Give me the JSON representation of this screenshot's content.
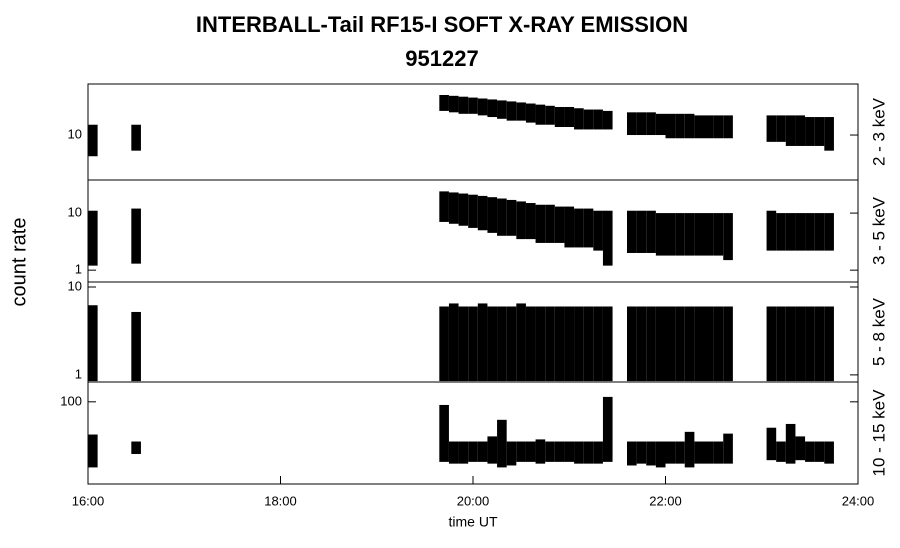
{
  "chart_data": {
    "type": "range",
    "title": "INTERBALL-Tail RF15-I SOFT X-RAY EMISSION",
    "subtitle": "951227",
    "x_label": "time UT",
    "y_label": "count rate",
    "color": "#000000",
    "log_y": true,
    "xlim": [
      16,
      24
    ],
    "xticks": [
      {
        "value": 16,
        "label": "16:00"
      },
      {
        "value": 18,
        "label": "18:00"
      },
      {
        "value": 20,
        "label": "20:00"
      },
      {
        "value": 22,
        "label": "22:00"
      },
      {
        "value": 24,
        "label": "24:00"
      }
    ],
    "panels": [
      {
        "name": "2 - 3 keV",
        "ylim": [
          2.3,
          53
        ],
        "yticks": [
          10
        ],
        "x": [
          16.05,
          16.5,
          19.7,
          19.8,
          19.9,
          20.0,
          20.1,
          20.2,
          20.3,
          20.4,
          20.5,
          20.6,
          20.7,
          20.8,
          20.9,
          21.0,
          21.1,
          21.2,
          21.3,
          21.4,
          21.65,
          21.75,
          21.85,
          21.95,
          22.05,
          22.15,
          22.25,
          22.35,
          22.45,
          22.55,
          22.65,
          23.1,
          23.2,
          23.3,
          23.4,
          23.5,
          23.6,
          23.7
        ],
        "high": [
          14,
          14,
          37,
          36,
          35,
          34,
          33,
          32,
          31,
          30,
          29,
          28,
          27,
          26,
          25,
          25,
          24,
          23,
          23,
          22,
          21,
          21,
          21,
          20,
          20,
          20,
          20,
          19,
          19,
          19,
          19,
          19,
          19,
          19,
          19,
          18,
          18,
          18
        ],
        "low": [
          5,
          6,
          22,
          21,
          20,
          20,
          19,
          18,
          17,
          16,
          16,
          15,
          14,
          14,
          13,
          13,
          12,
          12,
          12,
          12,
          10,
          10,
          10,
          10,
          9,
          9,
          9,
          9,
          9,
          9,
          9,
          8,
          8,
          7,
          7,
          7,
          7,
          6
        ]
      },
      {
        "name": "3 - 5 keV",
        "ylim": [
          0.62,
          38
        ],
        "yticks": [
          1,
          10
        ],
        "x": [
          16.05,
          16.5,
          19.7,
          19.8,
          19.9,
          20.0,
          20.1,
          20.2,
          20.3,
          20.4,
          20.5,
          20.6,
          20.7,
          20.8,
          20.9,
          21.0,
          21.1,
          21.2,
          21.3,
          21.4,
          21.65,
          21.75,
          21.85,
          21.95,
          22.05,
          22.15,
          22.25,
          22.35,
          22.45,
          22.55,
          22.65,
          23.1,
          23.2,
          23.3,
          23.4,
          23.5,
          23.6,
          23.7
        ],
        "high": [
          11,
          12,
          24,
          23,
          22,
          21,
          20,
          19,
          18,
          17,
          16,
          15,
          14,
          14,
          13,
          13,
          12,
          12,
          11,
          11,
          11,
          11,
          11,
          10,
          10,
          10,
          10,
          10,
          10,
          10,
          10,
          11,
          10,
          10,
          10,
          10,
          10,
          10
        ],
        "low": [
          1.2,
          1.3,
          7,
          6.5,
          6,
          5.5,
          5,
          4.5,
          4,
          4,
          3.5,
          3.5,
          3,
          3,
          3,
          2.5,
          2.5,
          2.5,
          2.2,
          1.2,
          2,
          2,
          2,
          1.8,
          1.8,
          1.8,
          1.8,
          1.8,
          1.8,
          1.8,
          1.5,
          2.2,
          2.2,
          2.2,
          2.2,
          2.2,
          2.2,
          2.2
        ]
      },
      {
        "name": "5 - 8 keV",
        "ylim": [
          0.83,
          11.4
        ],
        "yticks": [
          1,
          10
        ],
        "x": [
          16.05,
          16.5,
          19.7,
          19.8,
          19.9,
          20.0,
          20.1,
          20.2,
          20.3,
          20.4,
          20.5,
          20.6,
          20.7,
          20.8,
          20.9,
          21.0,
          21.1,
          21.2,
          21.3,
          21.4,
          21.65,
          21.75,
          21.85,
          21.95,
          22.05,
          22.15,
          22.25,
          22.35,
          22.45,
          22.55,
          22.65,
          23.1,
          23.2,
          23.3,
          23.4,
          23.5,
          23.6,
          23.7
        ],
        "high": [
          6.2,
          5.2,
          6,
          6.5,
          6,
          6,
          6.5,
          6,
          6,
          6,
          6.5,
          6,
          6,
          6,
          6,
          6,
          6,
          6,
          6,
          6,
          6,
          6,
          6,
          6,
          6,
          6,
          6,
          6,
          6,
          6,
          6,
          6,
          6,
          6,
          6,
          6,
          6,
          6
        ],
        "low": [
          0.85,
          0.85,
          0.85,
          0.85,
          0.85,
          0.85,
          0.85,
          0.85,
          0.85,
          0.85,
          0.85,
          0.85,
          0.85,
          0.85,
          0.85,
          0.85,
          0.85,
          0.85,
          0.85,
          0.85,
          0.85,
          0.85,
          0.85,
          0.85,
          0.85,
          0.85,
          0.85,
          0.85,
          0.85,
          0.85,
          0.85,
          0.85,
          0.85,
          0.85,
          0.85,
          0.85,
          0.85,
          0.85
        ]
      },
      {
        "name": "10 - 15 keV",
        "ylim": [
          15,
          158
        ],
        "yticks": [
          100
        ],
        "x": [
          16.05,
          16.5,
          19.7,
          19.8,
          19.9,
          20.0,
          20.1,
          20.2,
          20.3,
          20.4,
          20.5,
          20.6,
          20.7,
          20.8,
          20.9,
          21.0,
          21.1,
          21.2,
          21.3,
          21.4,
          21.65,
          21.75,
          21.85,
          21.95,
          22.05,
          22.15,
          22.25,
          22.35,
          22.45,
          22.55,
          22.65,
          23.1,
          23.2,
          23.3,
          23.4,
          23.5,
          23.6,
          23.7
        ],
        "high": [
          47,
          40,
          93,
          40,
          40,
          40,
          40,
          45,
          66,
          40,
          40,
          40,
          42,
          40,
          40,
          40,
          40,
          40,
          40,
          112,
          40,
          40,
          40,
          40,
          40,
          40,
          50,
          40,
          40,
          40,
          48,
          55,
          40,
          60,
          45,
          40,
          40,
          40
        ],
        "low": [
          22,
          30,
          25,
          24,
          24,
          25,
          25,
          24,
          22,
          23,
          25,
          25,
          24,
          25,
          25,
          25,
          24,
          24,
          24,
          25,
          23,
          24,
          23,
          22,
          24,
          24,
          22,
          24,
          24,
          24,
          24,
          26,
          25,
          24,
          26,
          25,
          25,
          24
        ]
      }
    ]
  }
}
